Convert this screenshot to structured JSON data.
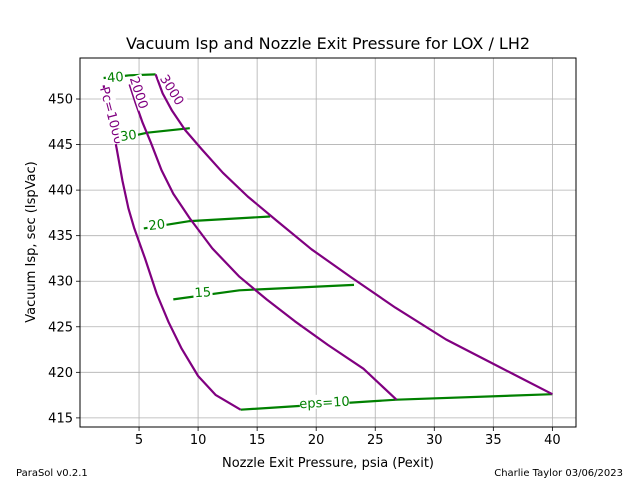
{
  "chart_data": {
    "type": "line",
    "title": "Vacuum Isp and Nozzle Exit Pressure for LOX / LH2",
    "xlabel": "Nozzle Exit Pressure, psia (Pexit)",
    "ylabel": "Vacuum Isp, sec (IspVac)",
    "xlim": [
      0,
      42
    ],
    "ylim": [
      414,
      454.5
    ],
    "xticks": [
      5,
      10,
      15,
      20,
      25,
      30,
      35,
      40
    ],
    "yticks": [
      415,
      420,
      425,
      430,
      435,
      440,
      445,
      450
    ],
    "grid": true,
    "colors": {
      "pc_lines": "#800080",
      "eps_lines": "#008000"
    },
    "pc_series": [
      {
        "name": "Pc=1000",
        "points": [
          [
            2.0,
            451.5
          ],
          [
            2.3,
            449.6
          ],
          [
            2.7,
            447.2
          ],
          [
            3.1,
            444.6
          ],
          [
            3.6,
            441.0
          ],
          [
            4.1,
            438.0
          ],
          [
            4.6,
            435.8
          ],
          [
            5.5,
            432.5
          ],
          [
            6.5,
            428.6
          ],
          [
            7.5,
            425.5
          ],
          [
            8.6,
            422.6
          ],
          [
            10.0,
            419.6
          ],
          [
            11.5,
            417.5
          ],
          [
            13.6,
            415.9
          ]
        ]
      },
      {
        "name": "2000",
        "points": [
          [
            4.2,
            451.6
          ],
          [
            4.7,
            449.6
          ],
          [
            5.3,
            447.4
          ],
          [
            6.0,
            445.2
          ],
          [
            6.9,
            442.2
          ],
          [
            7.9,
            439.6
          ],
          [
            9.3,
            436.9
          ],
          [
            11.2,
            433.6
          ],
          [
            13.5,
            430.5
          ],
          [
            15.8,
            428.0
          ],
          [
            18.2,
            425.6
          ],
          [
            21.0,
            423.0
          ],
          [
            24.0,
            420.4
          ],
          [
            26.8,
            417.0
          ]
        ]
      },
      {
        "name": "3000",
        "points": [
          [
            6.4,
            452.7
          ],
          [
            7.0,
            450.6
          ],
          [
            7.8,
            448.7
          ],
          [
            8.9,
            446.6
          ],
          [
            10.3,
            444.5
          ],
          [
            12.1,
            441.9
          ],
          [
            14.2,
            439.3
          ],
          [
            16.7,
            436.6
          ],
          [
            19.6,
            433.5
          ],
          [
            23.0,
            430.4
          ],
          [
            26.7,
            427.1
          ],
          [
            31.0,
            423.6
          ],
          [
            35.5,
            420.6
          ],
          [
            40.0,
            417.6
          ]
        ]
      }
    ],
    "eps_series": [
      {
        "name": "eps=10",
        "points": [
          [
            13.6,
            415.9
          ],
          [
            26.8,
            417.0
          ],
          [
            40.0,
            417.6
          ]
        ]
      },
      {
        "name": "15",
        "points": [
          [
            7.9,
            428.0
          ],
          [
            13.5,
            429.0
          ],
          [
            23.2,
            429.6
          ]
        ]
      },
      {
        "name": "20",
        "points": [
          [
            5.4,
            435.8
          ],
          [
            9.3,
            436.6
          ],
          [
            16.1,
            437.1
          ]
        ]
      },
      {
        "name": "30",
        "points": [
          [
            3.2,
            445.6
          ],
          [
            5.7,
            446.3
          ],
          [
            9.3,
            446.8
          ]
        ]
      },
      {
        "name": "40",
        "points": [
          [
            2.0,
            452.3
          ],
          [
            4.2,
            452.6
          ],
          [
            6.4,
            452.7
          ]
        ]
      }
    ],
    "series_labels": [
      {
        "text": "Pc=1000",
        "x": 2.7,
        "y": 448.2,
        "color": "#800080",
        "angle": 75
      },
      {
        "text": "2000",
        "x": 5.0,
        "y": 450.7,
        "color": "#800080",
        "angle": 72
      },
      {
        "text": "3000",
        "x": 7.8,
        "y": 451.0,
        "color": "#800080",
        "angle": 58
      },
      {
        "text": "eps=10",
        "x": 20.7,
        "y": 416.7,
        "color": "#008000",
        "angle": -3
      },
      {
        "text": "15",
        "x": 10.4,
        "y": 428.8,
        "color": "#008000",
        "angle": -4
      },
      {
        "text": "20",
        "x": 6.5,
        "y": 436.2,
        "color": "#008000",
        "angle": -7
      },
      {
        "text": "30",
        "x": 4.1,
        "y": 446.0,
        "color": "#008000",
        "angle": -8
      },
      {
        "text": "40",
        "x": 3.0,
        "y": 452.4,
        "color": "#008000",
        "angle": -5
      }
    ]
  },
  "footer": {
    "left": "ParaSol v0.2.1",
    "right": "Charlie Taylor 03/06/2023"
  }
}
